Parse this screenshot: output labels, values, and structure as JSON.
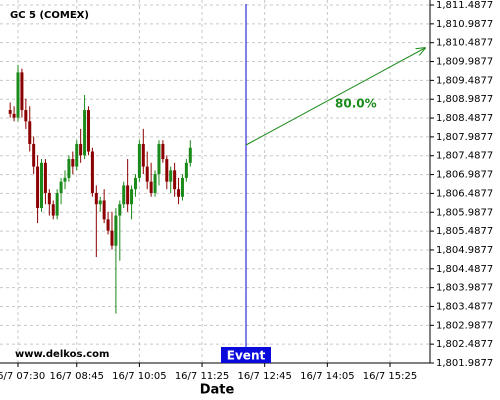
{
  "chart_data": {
    "type": "candlestick",
    "title": "GC 5 (COMEX)",
    "watermark": "www.delkos.com",
    "xlabel": "Date",
    "event_label": "Event",
    "annotation": "80.0%",
    "up_color": "#1a8a1a",
    "down_color": "#8b0000",
    "grid": true,
    "x": [
      "16/7 07:20",
      "16/7 07:25",
      "16/7 07:30",
      "16/7 07:35",
      "16/7 07:40",
      "16/7 07:45",
      "16/7 07:50",
      "16/7 07:55",
      "16/7 08:00",
      "16/7 08:05",
      "16/7 08:10",
      "16/7 08:15",
      "16/7 08:20",
      "16/7 08:25",
      "16/7 08:30",
      "16/7 08:35",
      "16/7 08:40",
      "16/7 08:45",
      "16/7 08:50",
      "16/7 08:55",
      "16/7 09:00",
      "16/7 09:05",
      "16/7 09:10",
      "16/7 09:15",
      "16/7 09:20",
      "16/7 09:25",
      "16/7 09:30",
      "16/7 09:35",
      "16/7 09:40",
      "16/7 09:45",
      "16/7 09:50",
      "16/7 09:55",
      "16/7 10:00",
      "16/7 10:05",
      "16/7 10:10",
      "16/7 10:15",
      "16/7 10:20",
      "16/7 10:25",
      "16/7 10:30",
      "16/7 10:35",
      "16/7 10:40",
      "16/7 10:45",
      "16/7 10:50",
      "16/7 10:55",
      "16/7 11:00",
      "16/7 11:05",
      "16/7 11:10"
    ],
    "open": [
      1808.7,
      1808.6,
      1808.5,
      1809.7,
      1808.7,
      1808.4,
      1807.8,
      1807.2,
      1806.1,
      1807.3,
      1806.5,
      1806.2,
      1805.9,
      1806.5,
      1806.8,
      1806.9,
      1807.4,
      1807.2,
      1807.8,
      1807.5,
      1808.7,
      1807.6,
      1806.5,
      1806.2,
      1806.3,
      1805.8,
      1805.5,
      1805.1,
      1805.9,
      1806.2,
      1806.7,
      1806.2,
      1806.6,
      1806.9,
      1807.8,
      1807.2,
      1806.8,
      1806.5,
      1807.0,
      1807.8,
      1807.4,
      1806.8,
      1807.1,
      1806.6,
      1806.4,
      1806.9,
      1807.3
    ],
    "high": [
      1808.9,
      1808.8,
      1809.9,
      1809.8,
      1809.0,
      1808.8,
      1808.0,
      1807.5,
      1807.4,
      1807.4,
      1806.6,
      1806.3,
      1806.6,
      1806.9,
      1807.1,
      1807.5,
      1807.6,
      1807.9,
      1808.2,
      1809.1,
      1808.8,
      1807.7,
      1806.7,
      1806.4,
      1806.6,
      1806.0,
      1806.0,
      1806.1,
      1806.3,
      1806.8,
      1807.4,
      1806.7,
      1807.0,
      1807.9,
      1808.2,
      1807.6,
      1807.3,
      1807.1,
      1807.9,
      1807.9,
      1807.5,
      1807.2,
      1807.3,
      1806.9,
      1807.0,
      1807.4,
      1807.9
    ],
    "low": [
      1808.5,
      1808.4,
      1808.4,
      1808.5,
      1808.2,
      1807.6,
      1807.0,
      1805.7,
      1806.0,
      1806.2,
      1805.9,
      1805.8,
      1805.8,
      1806.2,
      1806.6,
      1806.8,
      1807.0,
      1807.1,
      1807.3,
      1807.4,
      1807.5,
      1806.4,
      1804.8,
      1806.0,
      1805.7,
      1805.4,
      1805.0,
      1803.3,
      1804.7,
      1806.1,
      1806.0,
      1805.8,
      1806.4,
      1806.8,
      1807.0,
      1806.6,
      1806.4,
      1806.4,
      1806.7,
      1807.3,
      1806.6,
      1806.5,
      1806.4,
      1806.2,
      1806.3,
      1806.8,
      1807.2
    ],
    "close": [
      1808.6,
      1808.5,
      1809.7,
      1808.7,
      1808.4,
      1807.8,
      1807.2,
      1806.1,
      1807.3,
      1806.5,
      1806.2,
      1805.9,
      1806.5,
      1806.8,
      1806.9,
      1807.4,
      1807.2,
      1807.8,
      1807.5,
      1808.7,
      1807.6,
      1806.5,
      1806.2,
      1806.3,
      1805.8,
      1805.5,
      1805.1,
      1805.9,
      1806.2,
      1806.7,
      1806.2,
      1806.6,
      1806.9,
      1807.8,
      1807.2,
      1806.8,
      1806.5,
      1807.0,
      1807.8,
      1807.4,
      1806.8,
      1807.1,
      1806.6,
      1806.4,
      1806.9,
      1807.3,
      1807.7
    ],
    "xticks": [
      "16/7 07:30",
      "16/7 08:45",
      "16/7 10:05",
      "16/7 11:25",
      "16/7 12:45",
      "16/7 14:05",
      "16/7 15:25"
    ],
    "ylim": [
      1801.9877,
      1811.4877
    ],
    "yticks": [
      {
        "value": 1801.9877,
        "label": "1,801.9877"
      },
      {
        "value": 1802.4877,
        "label": "1,802.4877"
      },
      {
        "value": 1802.9877,
        "label": "1,802.9877"
      },
      {
        "value": 1803.4877,
        "label": "1,803.4877"
      },
      {
        "value": 1803.9877,
        "label": "1,803.9877"
      },
      {
        "value": 1804.4877,
        "label": "1,804.4877"
      },
      {
        "value": 1804.9877,
        "label": "1,804.9877"
      },
      {
        "value": 1805.4877,
        "label": "1,805.4877"
      },
      {
        "value": 1805.9877,
        "label": "1,805.9877"
      },
      {
        "value": 1806.4877,
        "label": "1,806.4877"
      },
      {
        "value": 1806.9877,
        "label": "1,806.9877"
      },
      {
        "value": 1807.4877,
        "label": "1,807.4877"
      },
      {
        "value": 1807.9877,
        "label": "1,807.9877"
      },
      {
        "value": 1808.4877,
        "label": "1,808.4877"
      },
      {
        "value": 1808.9877,
        "label": "1,808.9877"
      },
      {
        "value": 1809.4877,
        "label": "1,809.4877"
      },
      {
        "value": 1809.9877,
        "label": "1,809.9877"
      },
      {
        "value": 1810.4877,
        "label": "1,810.4877"
      },
      {
        "value": 1810.9877,
        "label": "1,810.9877"
      },
      {
        "value": 1811.4877,
        "label": "1,811.4877"
      }
    ]
  }
}
